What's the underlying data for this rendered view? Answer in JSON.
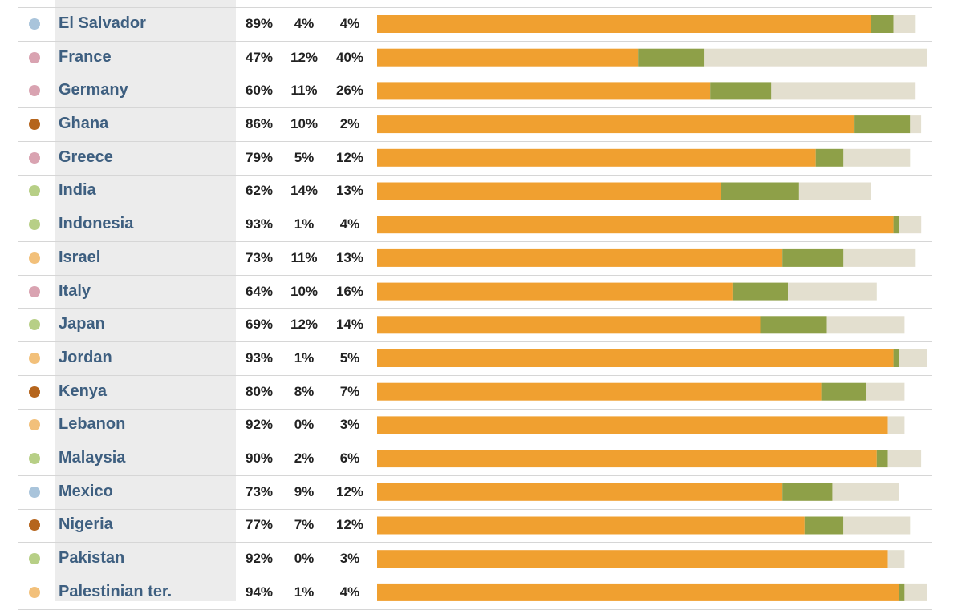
{
  "colors": {
    "region_latin_america": "#a9c4db",
    "region_europe": "#d9a3b1",
    "region_africa": "#b5651d",
    "region_asia": "#b7cf86",
    "region_middle_east": "#f2c07a",
    "series_1": "#f0a030",
    "series_2": "#8ea048",
    "series_3": "#e3dfcf",
    "country_text": "#3e5f80"
  },
  "chart_data": {
    "type": "bar",
    "stacked": true,
    "orientation": "horizontal",
    "categories": [
      "El Salvador",
      "France",
      "Germany",
      "Ghana",
      "Greece",
      "India",
      "Indonesia",
      "Israel",
      "Italy",
      "Japan",
      "Jordan",
      "Kenya",
      "Lebanon",
      "Malaysia",
      "Mexico",
      "Nigeria",
      "Pakistan",
      "Palestinian ter."
    ],
    "regions": [
      "region_latin_america",
      "region_europe",
      "region_europe",
      "region_africa",
      "region_europe",
      "region_asia",
      "region_asia",
      "region_middle_east",
      "region_europe",
      "region_asia",
      "region_middle_east",
      "region_africa",
      "region_middle_east",
      "region_asia",
      "region_latin_america",
      "region_africa",
      "region_asia",
      "region_middle_east"
    ],
    "series": [
      {
        "values": [
          89,
          47,
          60,
          86,
          79,
          62,
          93,
          73,
          64,
          69,
          93,
          80,
          92,
          90,
          73,
          77,
          92,
          94
        ]
      },
      {
        "values": [
          4,
          12,
          11,
          10,
          5,
          14,
          1,
          11,
          10,
          12,
          1,
          8,
          0,
          2,
          9,
          7,
          0,
          1
        ]
      },
      {
        "values": [
          4,
          40,
          26,
          2,
          12,
          13,
          4,
          13,
          16,
          14,
          5,
          7,
          3,
          6,
          12,
          12,
          3,
          4
        ]
      }
    ],
    "labels": [
      [
        "89%",
        "4%",
        "4%"
      ],
      [
        "47%",
        "12%",
        "40%"
      ],
      [
        "60%",
        "11%",
        "26%"
      ],
      [
        "86%",
        "10%",
        "2%"
      ],
      [
        "79%",
        "5%",
        "12%"
      ],
      [
        "62%",
        "14%",
        "13%"
      ],
      [
        "93%",
        "1%",
        "4%"
      ],
      [
        "73%",
        "11%",
        "13%"
      ],
      [
        "64%",
        "10%",
        "16%"
      ],
      [
        "69%",
        "12%",
        "14%"
      ],
      [
        "93%",
        "1%",
        "5%"
      ],
      [
        "80%",
        "8%",
        "7%"
      ],
      [
        "92%",
        "0%",
        "3%"
      ],
      [
        "90%",
        "2%",
        "6%"
      ],
      [
        "73%",
        "9%",
        "12%"
      ],
      [
        "77%",
        "7%",
        "12%"
      ],
      [
        "92%",
        "0%",
        "3%"
      ],
      [
        "94%",
        "1%",
        "4%"
      ]
    ],
    "xlim": [
      0,
      100
    ],
    "grid": false,
    "legend": "none"
  }
}
